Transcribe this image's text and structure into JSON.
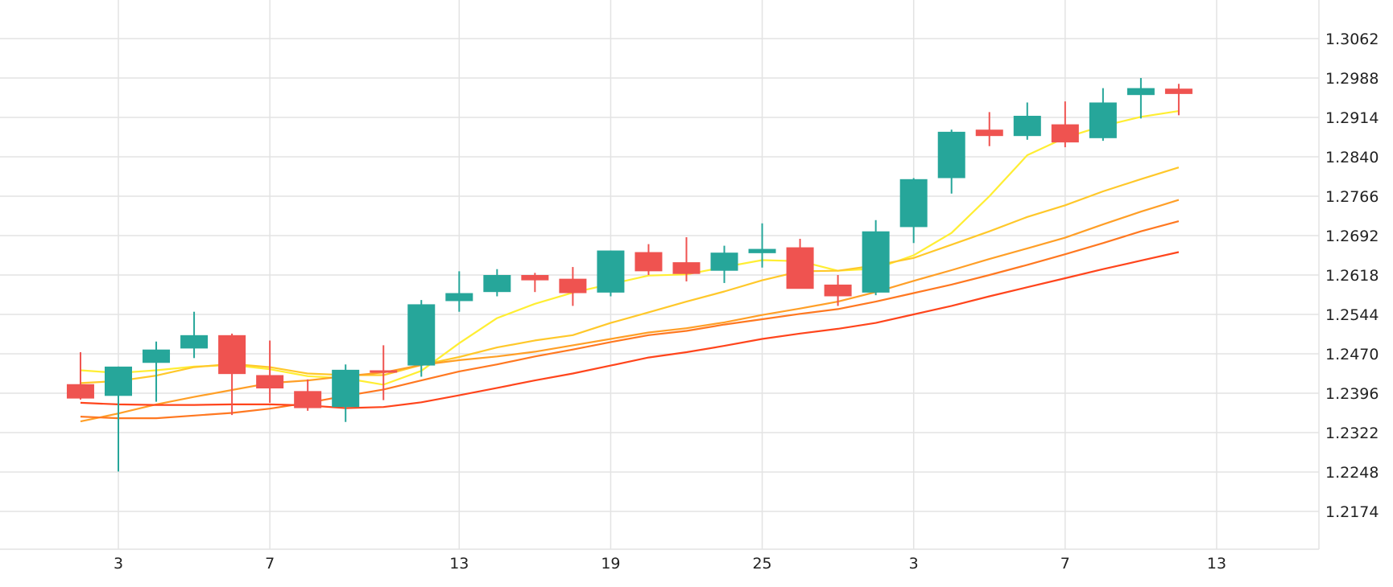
{
  "chart_data": {
    "type": "candlestick",
    "x_tick_labels": [
      "3",
      "7",
      "13",
      "19",
      "25",
      "3",
      "7",
      "13"
    ],
    "y_tick_labels": [
      "1.3062",
      "1.2988",
      "1.2914",
      "1.2840",
      "1.2766",
      "1.2692",
      "1.2618",
      "1.2544",
      "1.2470",
      "1.2396",
      "1.2322",
      "1.2248",
      "1.2174"
    ],
    "ylim": [
      1.21,
      1.3172
    ],
    "grid": true,
    "colors": {
      "up": "#26a69a",
      "down": "#ef5350",
      "grid": "#e3e3e3"
    },
    "candles": [
      {
        "o": 1.2413,
        "h": 1.2473,
        "l": 1.2384,
        "c": 1.2386
      },
      {
        "o": 1.2391,
        "h": 1.2446,
        "l": 1.2249,
        "c": 1.2446
      },
      {
        "o": 1.2453,
        "h": 1.2493,
        "l": 1.238,
        "c": 1.2478
      },
      {
        "o": 1.248,
        "h": 1.2549,
        "l": 1.2462,
        "c": 1.2505
      },
      {
        "o": 1.2505,
        "h": 1.2508,
        "l": 1.2355,
        "c": 1.2432
      },
      {
        "o": 1.243,
        "h": 1.2495,
        "l": 1.2378,
        "c": 1.2405
      },
      {
        "o": 1.24,
        "h": 1.2422,
        "l": 1.2363,
        "c": 1.2368
      },
      {
        "o": 1.237,
        "h": 1.245,
        "l": 1.2342,
        "c": 1.244
      },
      {
        "o": 1.2439,
        "h": 1.2486,
        "l": 1.2383,
        "c": 1.2435
      },
      {
        "o": 1.2448,
        "h": 1.2571,
        "l": 1.2427,
        "c": 1.2563
      },
      {
        "o": 1.2569,
        "h": 1.2625,
        "l": 1.2549,
        "c": 1.2584
      },
      {
        "o": 1.2586,
        "h": 1.2629,
        "l": 1.2578,
        "c": 1.2618
      },
      {
        "o": 1.2618,
        "h": 1.2622,
        "l": 1.2586,
        "c": 1.2608
      },
      {
        "o": 1.2611,
        "h": 1.2633,
        "l": 1.256,
        "c": 1.2584
      },
      {
        "o": 1.2585,
        "h": 1.2664,
        "l": 1.2578,
        "c": 1.2664
      },
      {
        "o": 1.2661,
        "h": 1.2676,
        "l": 1.2618,
        "c": 1.2625
      },
      {
        "o": 1.2642,
        "h": 1.2689,
        "l": 1.2606,
        "c": 1.262
      },
      {
        "o": 1.2626,
        "h": 1.2673,
        "l": 1.2603,
        "c": 1.266
      },
      {
        "o": 1.2659,
        "h": 1.2715,
        "l": 1.2632,
        "c": 1.2667
      },
      {
        "o": 1.267,
        "h": 1.2686,
        "l": 1.2595,
        "c": 1.2592
      },
      {
        "o": 1.26,
        "h": 1.2618,
        "l": 1.256,
        "c": 1.2578
      },
      {
        "o": 1.2585,
        "h": 1.2721,
        "l": 1.258,
        "c": 1.27
      },
      {
        "o": 1.2708,
        "h": 1.28,
        "l": 1.2678,
        "c": 1.2798
      },
      {
        "o": 1.28,
        "h": 1.2891,
        "l": 1.2771,
        "c": 1.2887
      },
      {
        "o": 1.2891,
        "h": 1.2924,
        "l": 1.286,
        "c": 1.2879
      },
      {
        "o": 1.2879,
        "h": 1.2942,
        "l": 1.2872,
        "c": 1.2917
      },
      {
        "o": 1.2901,
        "h": 1.2944,
        "l": 1.2858,
        "c": 1.2867
      },
      {
        "o": 1.2875,
        "h": 1.2969,
        "l": 1.287,
        "c": 1.2942
      },
      {
        "o": 1.2956,
        "h": 1.2988,
        "l": 1.2912,
        "c": 1.2969
      },
      {
        "o": 1.2968,
        "h": 1.2977,
        "l": 1.2918,
        "c": 1.2958
      }
    ],
    "moving_averages": [
      {
        "color": "#ffee33",
        "values": [
          1.2439,
          1.2434,
          1.2439,
          1.2446,
          1.2449,
          1.2441,
          1.2428,
          1.2424,
          1.2412,
          1.2438,
          1.249,
          1.2537,
          1.2564,
          1.2585,
          1.2601,
          1.2617,
          1.2619,
          1.2633,
          1.2646,
          1.2644,
          1.2626,
          1.263,
          1.2655,
          1.2697,
          1.2766,
          1.2843,
          1.2876,
          1.2898,
          1.2915,
          1.2926
        ]
      },
      {
        "color": "#ffc82a",
        "values": [
          1.2415,
          1.2419,
          1.2429,
          1.2445,
          1.2451,
          1.2445,
          1.2433,
          1.243,
          1.243,
          1.2449,
          1.2464,
          1.2482,
          1.2495,
          1.2505,
          1.2528,
          1.2548,
          1.2568,
          1.2587,
          1.2608,
          1.2625,
          1.2626,
          1.2636,
          1.265,
          1.2675,
          1.27,
          1.2727,
          1.2749,
          1.2775,
          1.2798,
          1.282
        ]
      },
      {
        "color": "#ff9f27",
        "values": [
          1.2343,
          1.2358,
          1.2375,
          1.2389,
          1.2402,
          1.2415,
          1.242,
          1.2428,
          1.2435,
          1.2449,
          1.2458,
          1.2465,
          1.2474,
          1.2486,
          1.2498,
          1.251,
          1.2518,
          1.2529,
          1.2543,
          1.2555,
          1.2568,
          1.2586,
          1.2607,
          1.2627,
          1.2648,
          1.2668,
          1.2688,
          1.2713,
          1.2737,
          1.2759
        ]
      },
      {
        "color": "#ff7821",
        "values": [
          1.2352,
          1.2349,
          1.2349,
          1.2354,
          1.2359,
          1.2367,
          1.2378,
          1.2391,
          1.2403,
          1.242,
          1.2437,
          1.245,
          1.2465,
          1.2478,
          1.2492,
          1.2505,
          1.2513,
          1.2525,
          1.2535,
          1.2545,
          1.2554,
          1.2568,
          1.2584,
          1.26,
          1.2618,
          1.2637,
          1.2657,
          1.2678,
          1.27,
          1.2719
        ]
      },
      {
        "color": "#ff451c",
        "values": [
          1.2378,
          1.2375,
          1.2374,
          1.2374,
          1.2375,
          1.2375,
          1.2373,
          1.2368,
          1.237,
          1.2379,
          1.2392,
          1.2406,
          1.242,
          1.2433,
          1.2448,
          1.2463,
          1.2473,
          1.2485,
          1.2498,
          1.2508,
          1.2517,
          1.2528,
          1.2544,
          1.256,
          1.2578,
          1.2595,
          1.2612,
          1.2629,
          1.2645,
          1.2661
        ]
      }
    ]
  }
}
